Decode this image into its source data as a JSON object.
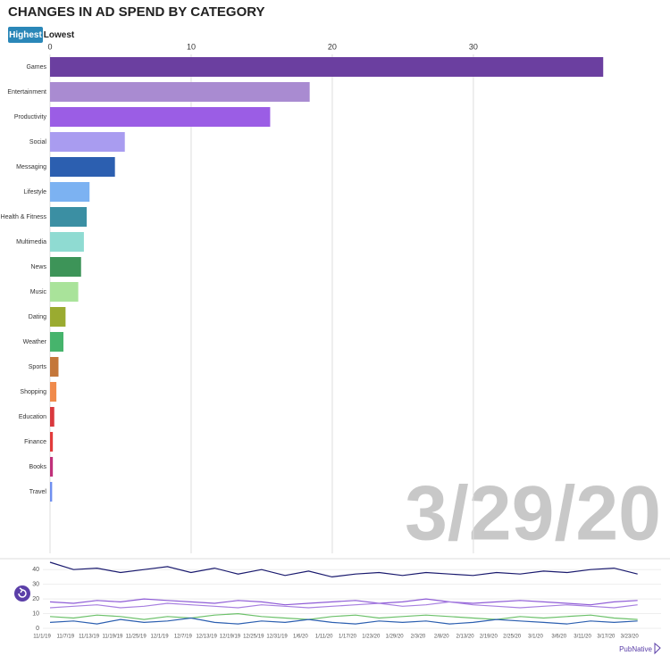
{
  "title": "CHANGES IN AD SPEND BY CATEGORY",
  "controls": [
    "Highest",
    "Lowest"
  ],
  "current_date": "3/29/20",
  "logo": "PubNative",
  "chart_data": [
    {
      "type": "bar",
      "orientation": "horizontal",
      "categories": [
        "Games",
        "Entertainment",
        "Productivity",
        "Social",
        "Messaging",
        "Lifestyle",
        "Health & Fitness",
        "Multimedia",
        "News",
        "Music",
        "Dating",
        "Weather",
        "Sports",
        "Shopping",
        "Education",
        "Finance",
        "Books",
        "Travel"
      ],
      "values": [
        39.2,
        18.4,
        15.6,
        5.3,
        4.6,
        2.8,
        2.6,
        2.4,
        2.2,
        2.0,
        1.1,
        0.95,
        0.6,
        0.45,
        0.3,
        0.2,
        0.2,
        0.15
      ],
      "colors": [
        "#6b3fa0",
        "#a98bd1",
        "#9b5de5",
        "#a99cf0",
        "#2c5fb0",
        "#7cb2f2",
        "#3b8fa3",
        "#8fdbd2",
        "#3d9458",
        "#a9e39a",
        "#9aab30",
        "#46b46c",
        "#c4773a",
        "#f08a4b",
        "#d9393e",
        "#e23b3b",
        "#c0317a",
        "#6f8ff0"
      ],
      "xlim": [
        0,
        43.3
      ],
      "xticks": [
        0,
        10,
        20,
        30
      ],
      "grid": true
    },
    {
      "type": "line",
      "categories": [
        "11/1/19",
        "11/7/19",
        "11/13/19",
        "11/19/19",
        "11/25/19",
        "12/1/19",
        "12/7/19",
        "12/13/19",
        "12/19/19",
        "12/25/19",
        "12/31/19",
        "1/6/20",
        "1/11/20",
        "1/17/20",
        "1/23/20",
        "1/29/20",
        "2/3/20",
        "2/8/20",
        "2/13/20",
        "2/19/20",
        "2/25/20",
        "3/1/20",
        "3/6/20",
        "3/11/20",
        "3/17/20",
        "3/23/20"
      ],
      "series": [
        {
          "name": "Games",
          "color": "#1a1a6e",
          "values": [
            45,
            40,
            41,
            38,
            40,
            42,
            38,
            41,
            37,
            40,
            36,
            39,
            35,
            37,
            38,
            36,
            38,
            37,
            36,
            38,
            37,
            39,
            38,
            40,
            41,
            37
          ]
        },
        {
          "name": "Entertainment",
          "color": "#8e5bd6",
          "values": [
            18,
            17,
            19,
            18,
            20,
            19,
            18,
            17,
            19,
            18,
            16,
            17,
            18,
            19,
            17,
            18,
            20,
            18,
            17,
            18,
            19,
            18,
            17,
            16,
            18,
            19
          ]
        },
        {
          "name": "Productivity",
          "color": "#a77fe0",
          "values": [
            14,
            15,
            16,
            14,
            15,
            17,
            16,
            15,
            14,
            16,
            15,
            14,
            15,
            16,
            17,
            15,
            16,
            18,
            16,
            15,
            14,
            15,
            16,
            15,
            14,
            16
          ]
        },
        {
          "name": "Social",
          "color": "#6cc16a",
          "values": [
            8,
            7,
            9,
            8,
            6,
            8,
            7,
            9,
            10,
            8,
            7,
            6,
            8,
            9,
            7,
            8,
            9,
            8,
            7,
            6,
            8,
            7,
            8,
            9,
            7,
            6
          ]
        },
        {
          "name": "Messaging",
          "color": "#2c5fb0",
          "values": [
            4,
            5,
            3,
            6,
            4,
            5,
            7,
            4,
            3,
            5,
            4,
            6,
            4,
            3,
            5,
            4,
            5,
            3,
            4,
            6,
            5,
            4,
            3,
            5,
            4,
            5
          ]
        }
      ],
      "ylim": [
        0,
        45
      ],
      "yticks": [
        0,
        10,
        20,
        30,
        40
      ]
    }
  ]
}
